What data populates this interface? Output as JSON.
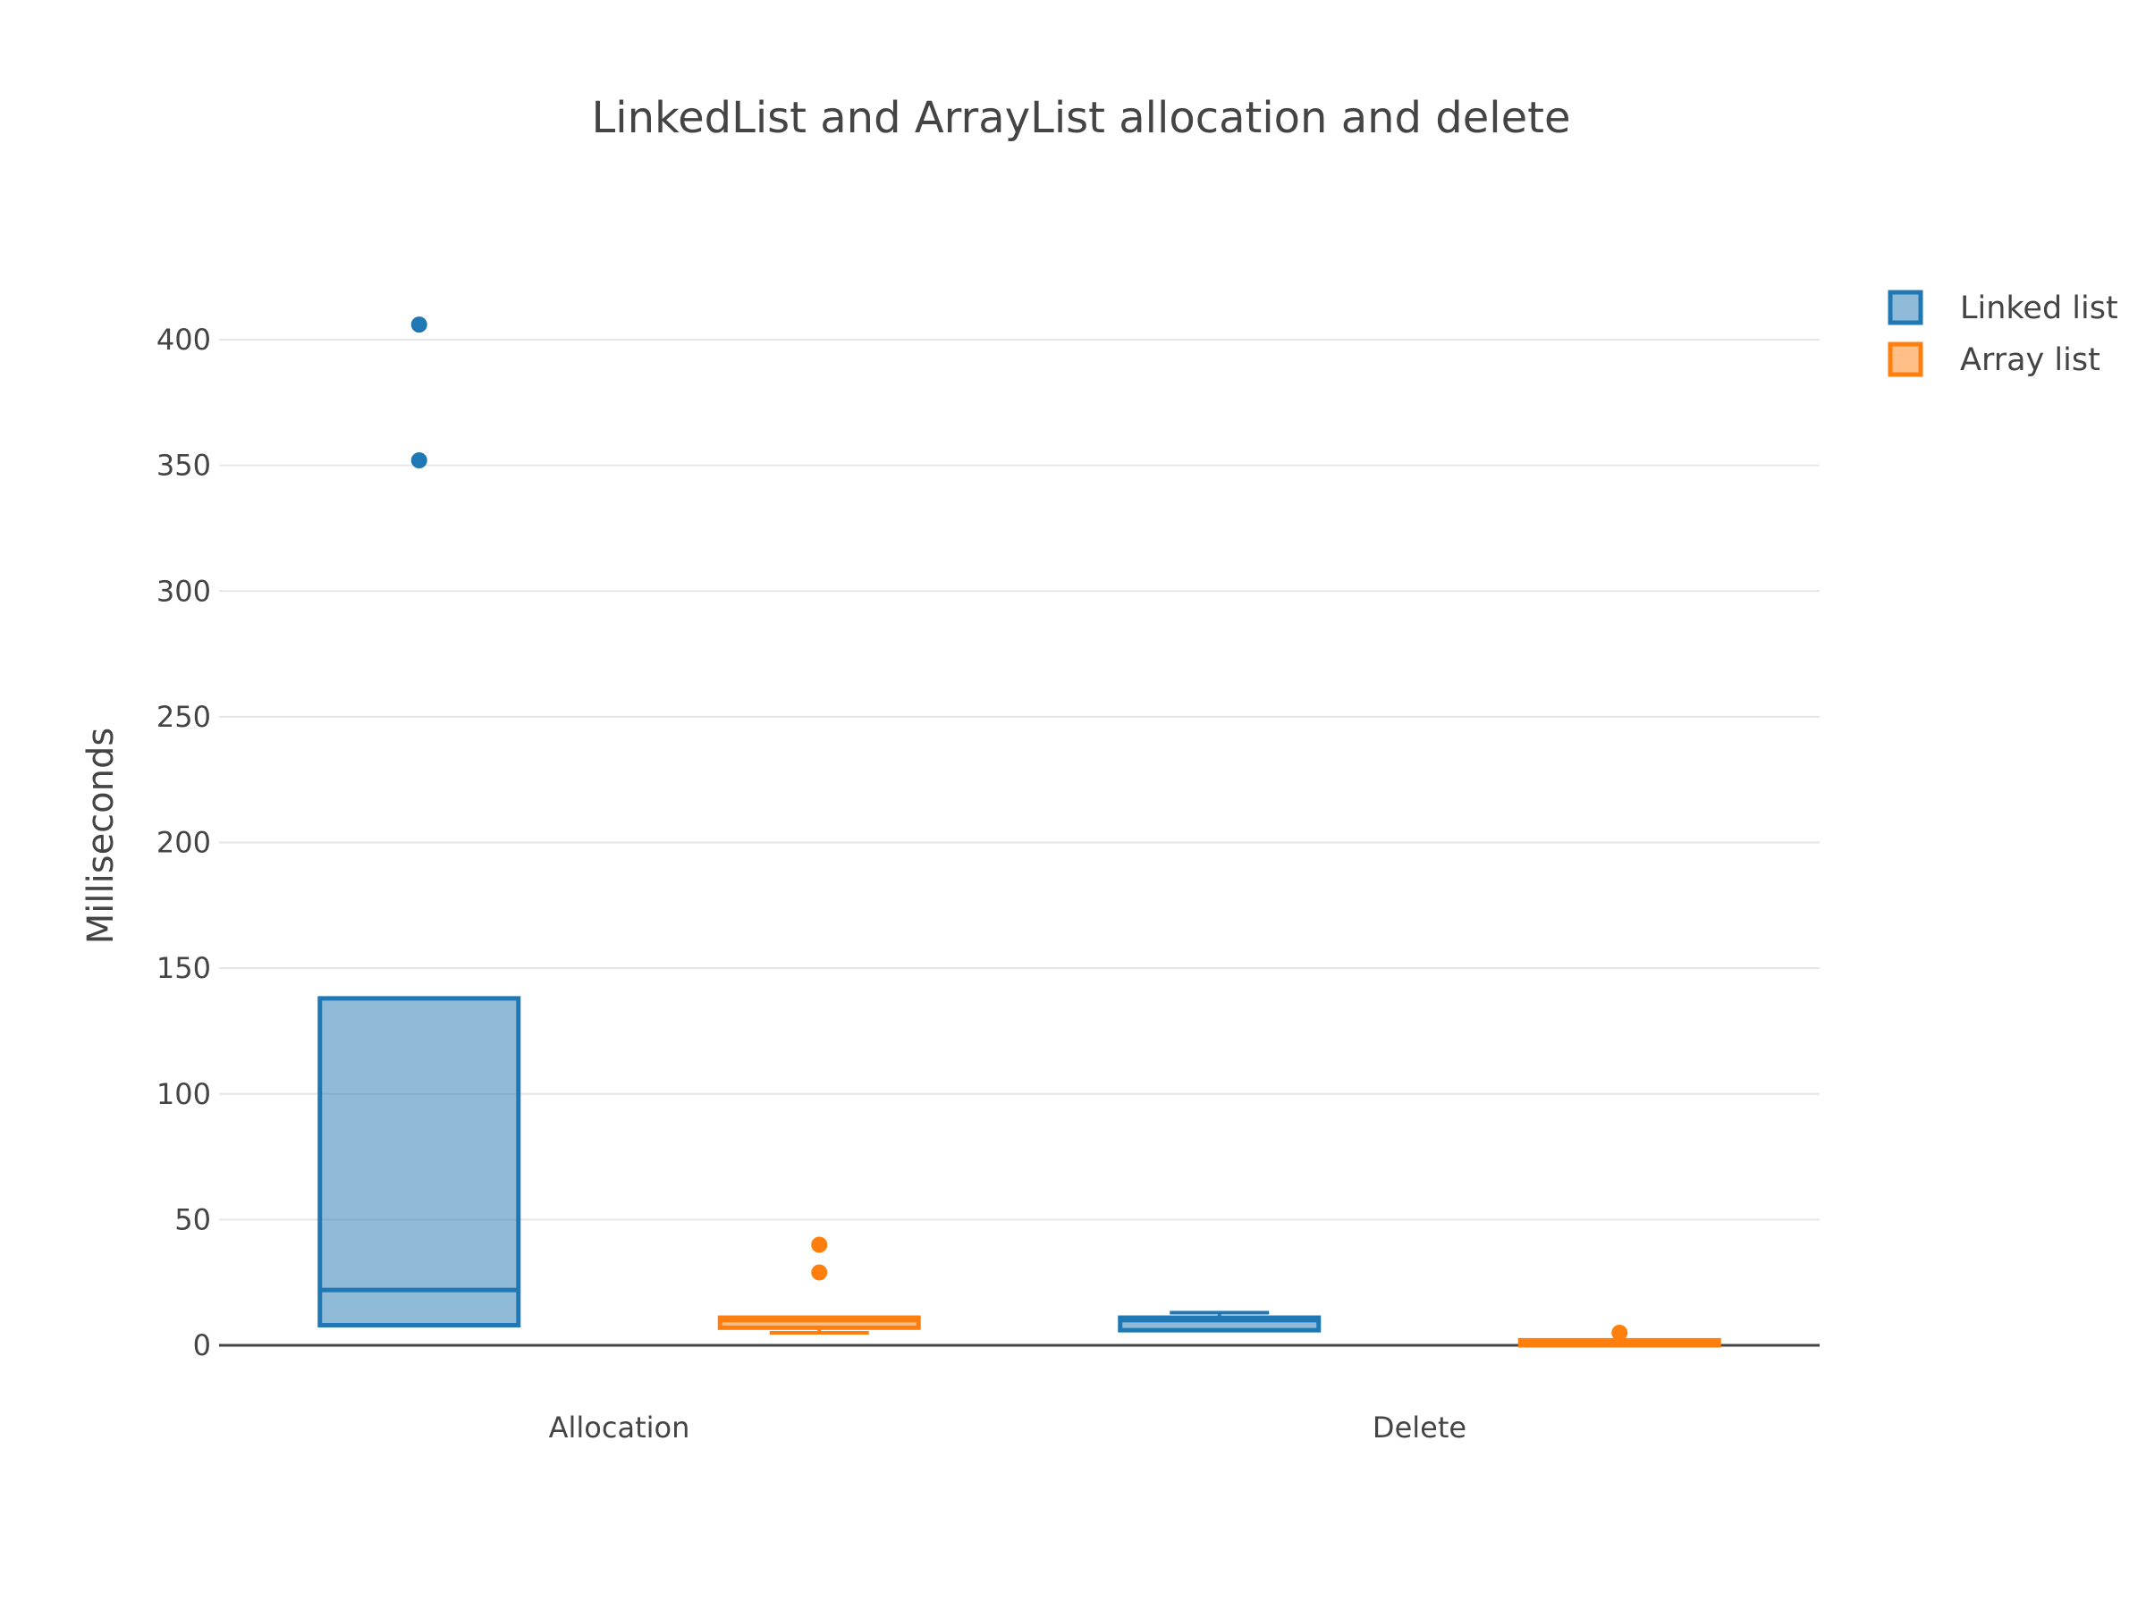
{
  "chart_data": {
    "type": "box",
    "title": "LinkedList and ArrayList allocation and delete",
    "xlabel": "",
    "ylabel": "Milliseconds",
    "categories": [
      "Allocation",
      "Delete"
    ],
    "ylim": [
      -8,
      425
    ],
    "yticks": [
      0,
      50,
      100,
      150,
      200,
      250,
      300,
      350,
      400
    ],
    "grid": true,
    "legend_position": "top-right",
    "series": [
      {
        "name": "Linked list",
        "color": "#1f77b4",
        "fill": "rgba(31,119,180,0.5)",
        "boxes": [
          {
            "category": "Allocation",
            "min": 8,
            "q1": 8,
            "median": 22,
            "q3": 138,
            "max": 138,
            "outliers": [
              352,
              406
            ]
          },
          {
            "category": "Delete",
            "min": 6,
            "q1": 6,
            "median": 10,
            "q3": 11,
            "max": 13,
            "outliers": []
          }
        ]
      },
      {
        "name": "Array list",
        "color": "#ff7f0e",
        "fill": "rgba(255,127,14,0.5)",
        "boxes": [
          {
            "category": "Allocation",
            "min": 5,
            "q1": 7,
            "median": 10,
            "q3": 11,
            "max": 11,
            "outliers": [
              29,
              40
            ]
          },
          {
            "category": "Delete",
            "min": 0,
            "q1": 0,
            "median": 1,
            "q3": 2,
            "max": 2,
            "outliers": [
              5
            ]
          }
        ]
      }
    ]
  }
}
